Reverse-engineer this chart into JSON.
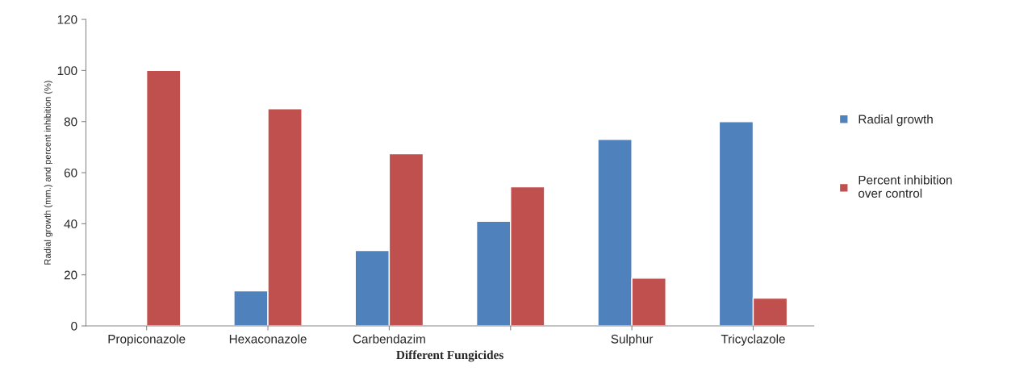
{
  "chart_data": {
    "type": "bar",
    "xlabel": "Different Fungicides",
    "ylabel": "Radial growth (mm.) and percent inhibition (%)",
    "categories": [
      "Propiconazole",
      "Hexaconazole",
      "Carbendazim",
      null,
      "Sulphur",
      "Tricyclazole"
    ],
    "series": [
      {
        "name": "Radial growth",
        "color": "#4f81bd",
        "values": [
          null,
          13.7,
          29.5,
          41,
          73,
          80
        ]
      },
      {
        "name": "Percent inhibition over control",
        "color": "#c0504d",
        "values": [
          100,
          85,
          67.4,
          54.5,
          18.7,
          10.9
        ]
      }
    ],
    "ylim": [
      0,
      120
    ],
    "yticks": [
      0,
      20,
      40,
      60,
      80,
      100,
      120
    ],
    "grid": false,
    "legend": "right"
  }
}
